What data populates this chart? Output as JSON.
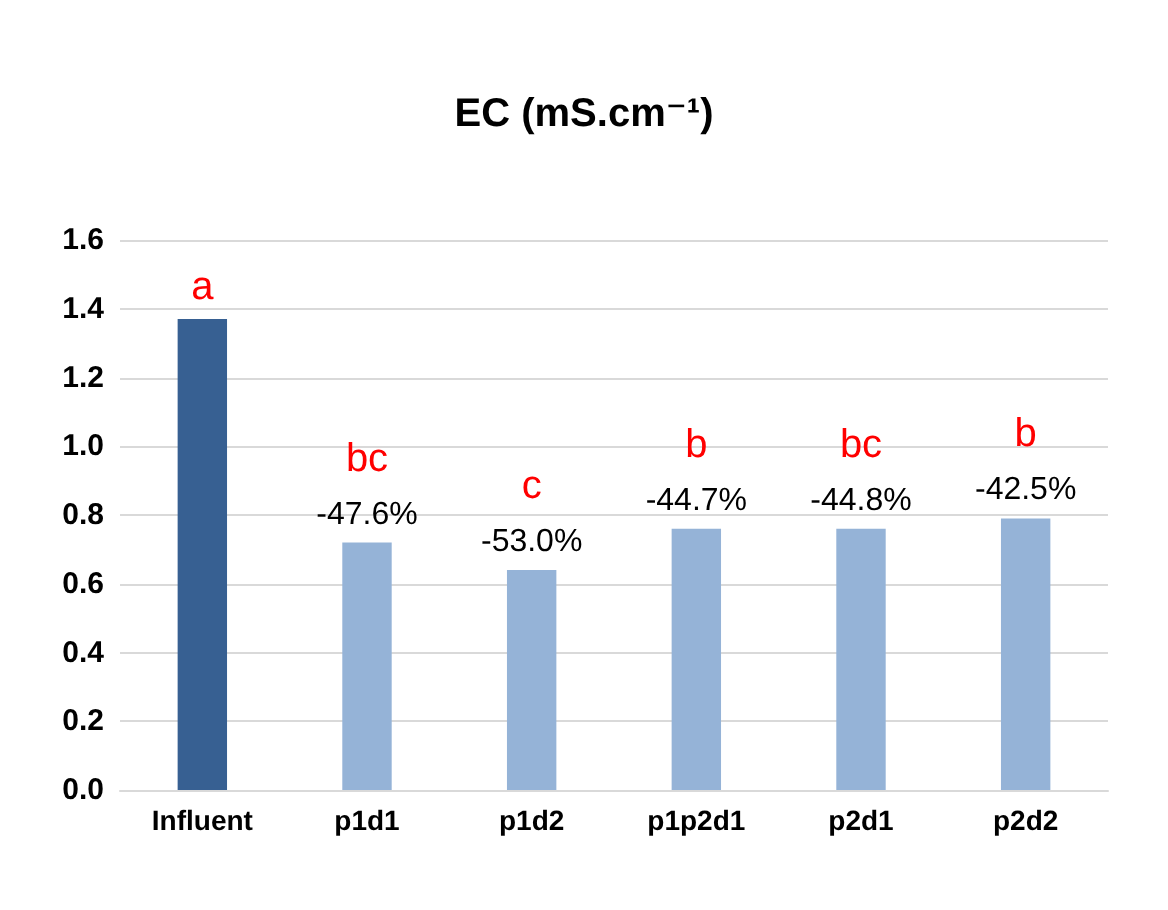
{
  "chart_data": {
    "type": "bar",
    "title": "EC (mS.cm⁻¹)",
    "categories": [
      "Influent",
      "p1d1",
      "p1d2",
      "p1p2d1",
      "p2d1",
      "p2d2"
    ],
    "values": [
      1.37,
      0.72,
      0.64,
      0.76,
      0.76,
      0.79
    ],
    "colors": [
      "#376092",
      "#95b3d7",
      "#95b3d7",
      "#95b3d7",
      "#95b3d7",
      "#95b3d7"
    ],
    "annotations": [
      "a",
      "bc",
      "c",
      "b",
      "bc",
      "b",
      "-47.6%",
      "-53.0%",
      "-44.7%",
      "-44.8%",
      "-42.5%"
    ],
    "ylim": [
      0,
      1.6
    ],
    "yticks": [
      {
        "value": 0,
        "label": "0.0"
      },
      0.2,
      0.4,
      0.6,
      0.8,
      {
        "value": 1,
        "label": "1.0"
      },
      1.2,
      1.4,
      1.6
    ],
    "grid": "y"
  }
}
